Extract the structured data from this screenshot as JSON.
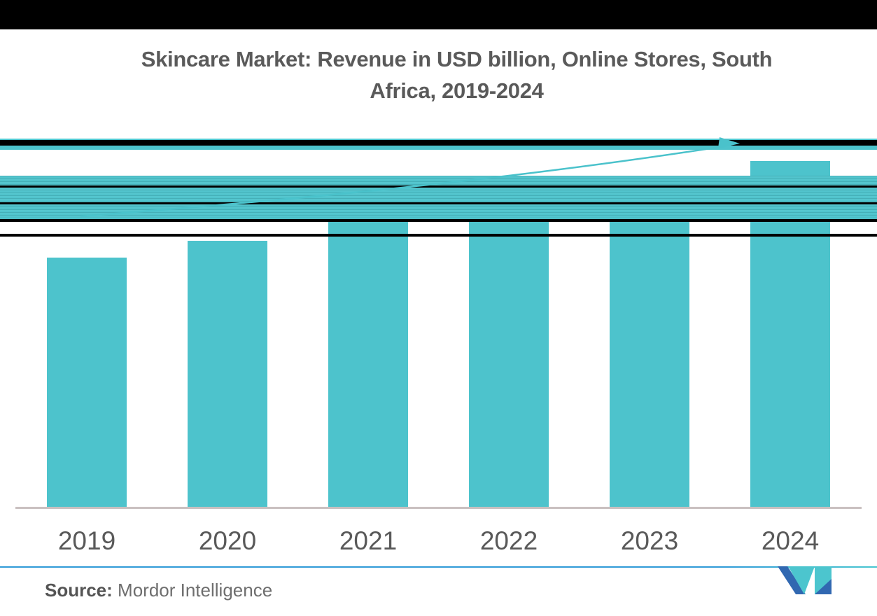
{
  "title": {
    "line1": "Skincare Market: Revenue in USD billion, Online Stores, South",
    "line2": "Africa, 2019-2024"
  },
  "chart_data": {
    "type": "bar",
    "title": "Skincare Market: Revenue in USD billion, Online Stores, South Africa, 2019-2024",
    "xlabel": "",
    "ylabel": "Revenue in USD billion",
    "categories": [
      "2019",
      "2020",
      "2021",
      "2022",
      "2023",
      "2024"
    ],
    "series": [
      {
        "name": "Revenue",
        "values": [
          357,
          381,
          409,
          416,
          445,
          495
        ],
        "values_unit": "relative bar heights in px — no numeric y-axis, gridlines or data labels are visible in the image"
      }
    ],
    "y_axis_visible": false,
    "grid": false,
    "legend_position": "none",
    "bar_color": "#4dc3cc",
    "annotations": [
      "rising trend arrow from above the 2019 bar to above the 2024 bar"
    ]
  },
  "source": {
    "label": "Source:",
    "text": "Mordor Intelligence"
  },
  "logo": {
    "name": "Mordor Intelligence M monogram",
    "teal": "#4cc5ce",
    "blue": "#3168b1"
  },
  "colors": {
    "bar": "#4dc3cc",
    "trend_arrow": "#4ac2cb",
    "title_text": "#5a5a5a",
    "axis_line": "#c9c0c0",
    "x_label_text": "#595959",
    "glitch_black": "#000000",
    "glitch_blue_line": "#2f9ad8"
  }
}
